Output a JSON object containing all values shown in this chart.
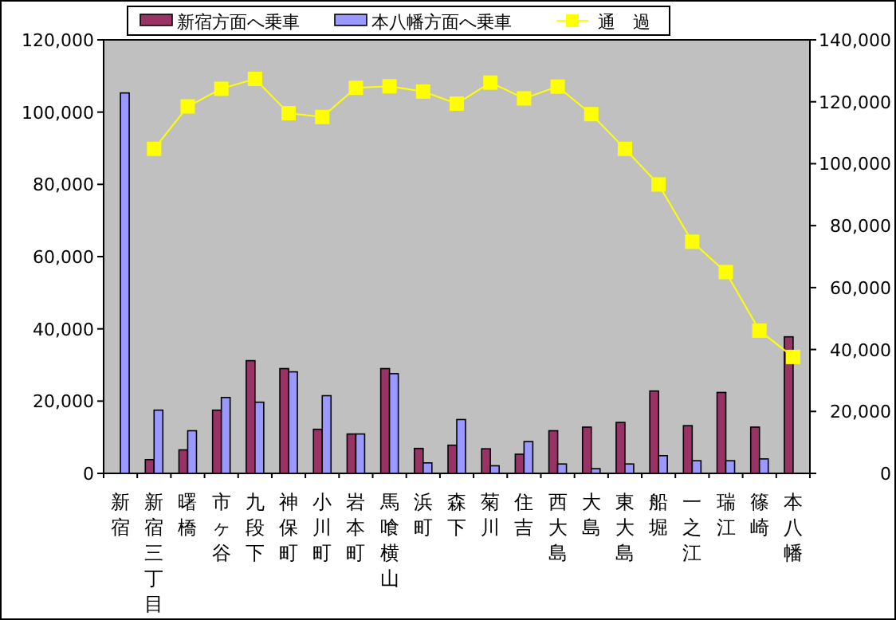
{
  "chart_data": {
    "type": "bar",
    "categories": [
      "新宿",
      "新宿三丁目",
      "曙橋",
      "市ヶ谷",
      "九段下",
      "神保町",
      "小川町",
      "岩本町",
      "馬喰横山",
      "浜町",
      "森下",
      "菊川",
      "住吉",
      "西大島",
      "大島",
      "東大島",
      "船堀",
      "一之江",
      "瑞江",
      "篠崎",
      "本八幡"
    ],
    "series": [
      {
        "name": "新宿方面へ乗車",
        "color": "#993366",
        "values": [
          null,
          3800,
          6500,
          17500,
          31200,
          29000,
          12200,
          10900,
          29000,
          6900,
          7800,
          6800,
          5300,
          11800,
          12800,
          14100,
          22800,
          13200,
          22400,
          12800,
          37800
        ]
      },
      {
        "name": "本八幡方面へ乗車",
        "color": "#9999ff",
        "values": [
          105300,
          17500,
          11800,
          21000,
          19700,
          28100,
          21500,
          10900,
          27600,
          2900,
          14900,
          2100,
          8800,
          2600,
          1300,
          2600,
          4900,
          3500,
          3500,
          4000,
          null
        ]
      },
      {
        "name": "通　過",
        "type": "line",
        "axis": "y2",
        "color": "#ffff00",
        "marker": "square",
        "values": [
          null,
          104800,
          118500,
          124200,
          127400,
          116300,
          115100,
          124500,
          125000,
          123300,
          119400,
          126200,
          121100,
          124900,
          116000,
          104800,
          93300,
          74800,
          65000,
          46100,
          37600
        ]
      }
    ],
    "ylim": [
      0,
      120000
    ],
    "yticks": [
      0,
      {
        "value": 20000,
        "label": "20,000"
      },
      {
        "value": 40000,
        "label": "40,000"
      },
      {
        "value": 60000,
        "label": "60,000"
      },
      {
        "value": 80000,
        "label": "80,000"
      },
      {
        "value": 100000,
        "label": "100,000"
      },
      {
        "value": 120000,
        "label": "120,000"
      }
    ],
    "y2lim": [
      0,
      140000
    ],
    "y2ticks": [
      0,
      {
        "value": 20000,
        "label": "20,000"
      },
      {
        "value": 40000,
        "label": "40,000"
      },
      {
        "value": 60000,
        "label": "60,000"
      },
      {
        "value": 80000,
        "label": "80,000"
      },
      {
        "value": 100000,
        "label": "100,000"
      },
      {
        "value": 120000,
        "label": "120,000"
      },
      {
        "value": 140000,
        "label": "140,000"
      }
    ],
    "legend": "top",
    "grid": false
  }
}
